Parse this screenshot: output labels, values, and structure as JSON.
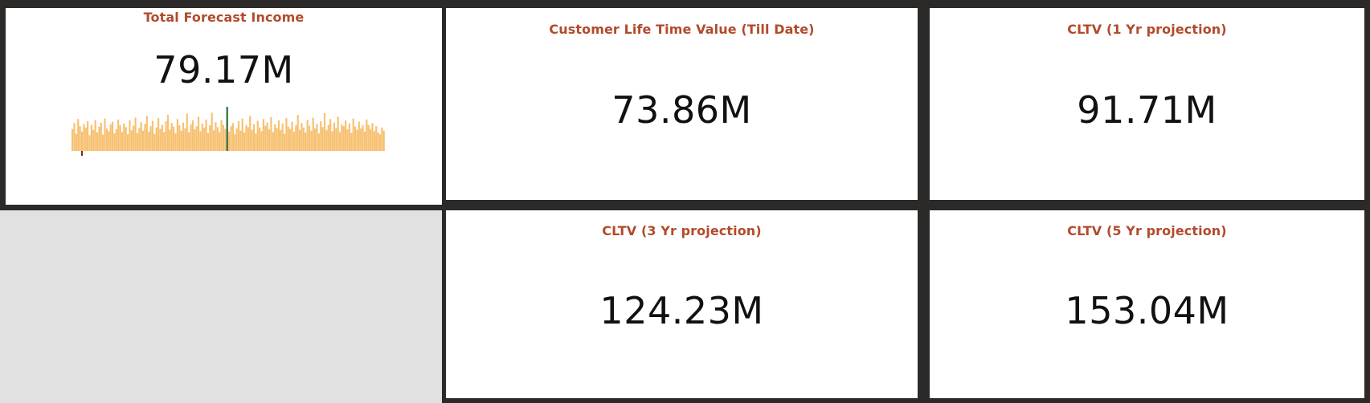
{
  "tiles": {
    "total_forecast": {
      "title": "Total Forecast Income",
      "value": "79.17M"
    },
    "cltv_till_date": {
      "title": "Customer Life Time Value (Till Date)",
      "value": "73.86M"
    },
    "cltv_1yr": {
      "title": "CLTV (1 Yr projection)",
      "value": "91.71M"
    },
    "cltv_3yr": {
      "title": "CLTV (3 Yr projection)",
      "value": "124.23M"
    },
    "cltv_5yr": {
      "title": "CLTV (5 Yr projection)",
      "value": "153.04M"
    }
  },
  "chart_data": {
    "type": "bar",
    "bar_color": "#f7c172",
    "highlight_color": "#2e6b35",
    "low_marker_color": "#7a2e1d",
    "highlight_index": 81,
    "low_index": 5,
    "values": [
      0.49,
      0.62,
      0.38,
      0.71,
      0.55,
      0.43,
      0.6,
      0.52,
      0.66,
      0.35,
      0.58,
      0.47,
      0.69,
      0.41,
      0.54,
      0.63,
      0.36,
      0.72,
      0.5,
      0.44,
      0.59,
      0.65,
      0.39,
      0.48,
      0.7,
      0.57,
      0.42,
      0.61,
      0.53,
      0.37,
      0.68,
      0.46,
      0.56,
      0.74,
      0.4,
      0.51,
      0.64,
      0.45,
      0.6,
      0.78,
      0.43,
      0.55,
      0.67,
      0.38,
      0.52,
      0.73,
      0.49,
      0.58,
      0.42,
      0.66,
      0.8,
      0.47,
      0.62,
      0.54,
      0.39,
      0.71,
      0.57,
      0.45,
      0.63,
      0.5,
      0.83,
      0.41,
      0.59,
      0.68,
      0.48,
      0.55,
      0.76,
      0.44,
      0.61,
      0.52,
      0.7,
      0.4,
      0.57,
      0.85,
      0.46,
      0.64,
      0.53,
      0.42,
      0.69,
      0.58,
      0.49,
      0.98,
      0.43,
      0.55,
      0.62,
      0.37,
      0.5,
      0.66,
      0.45,
      0.72,
      0.41,
      0.58,
      0.53,
      0.78,
      0.47,
      0.6,
      0.39,
      0.67,
      0.52,
      0.44,
      0.71,
      0.56,
      0.63,
      0.48,
      0.75,
      0.42,
      0.59,
      0.51,
      0.68,
      0.46,
      0.61,
      0.38,
      0.73,
      0.54,
      0.49,
      0.65,
      0.43,
      0.57,
      0.8,
      0.47,
      0.62,
      0.52,
      0.41,
      0.69,
      0.56,
      0.45,
      0.74,
      0.5,
      0.6,
      0.39,
      0.66,
      0.53,
      0.84,
      0.46,
      0.58,
      0.71,
      0.44,
      0.63,
      0.51,
      0.76,
      0.42,
      0.59,
      0.55,
      0.68,
      0.48,
      0.61,
      0.4,
      0.72,
      0.54,
      0.47,
      0.65,
      0.5,
      0.57,
      0.43,
      0.7,
      0.58,
      0.49,
      0.62,
      0.44,
      0.55,
      0.41,
      0.37,
      0.52,
      0.45
    ]
  }
}
